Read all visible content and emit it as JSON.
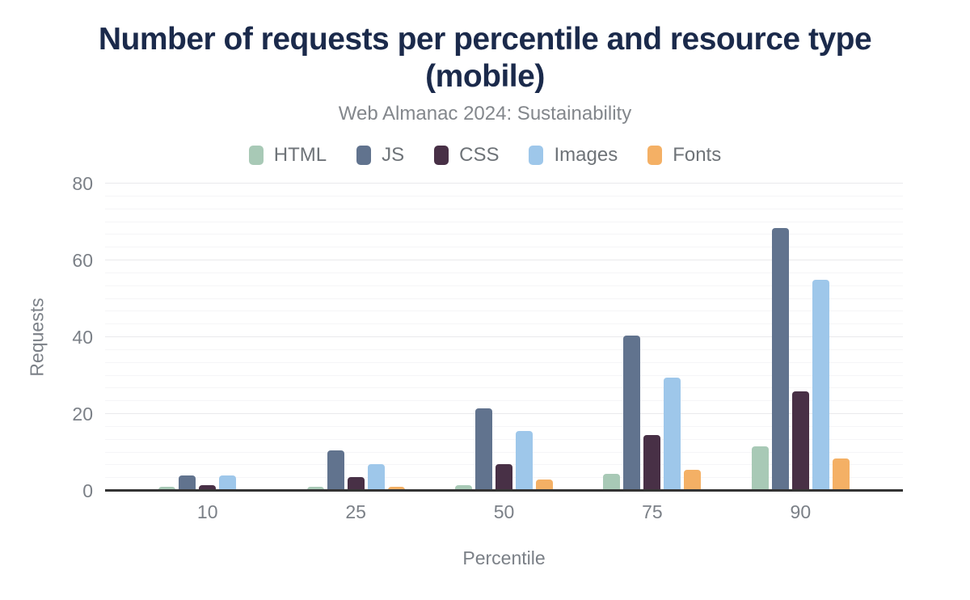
{
  "header": {
    "title": "Number of requests per percentile and resource type (mobile)",
    "subtitle": "Web Almanac 2024: Sustainability"
  },
  "chart_data": {
    "type": "bar",
    "title": "Number of requests per percentile and resource type (mobile)",
    "subtitle": "Web Almanac 2024: Sustainability",
    "xlabel": "Percentile",
    "ylabel": "Requests",
    "categories": [
      "10",
      "25",
      "50",
      "75",
      "90"
    ],
    "series": [
      {
        "name": "HTML",
        "color": "#a8c9b6",
        "values": [
          1,
          1,
          1.5,
          4.5,
          11.5
        ]
      },
      {
        "name": "JS",
        "color": "#61738e",
        "values": [
          4,
          10.5,
          21.5,
          40.5,
          68.5
        ]
      },
      {
        "name": "CSS",
        "color": "#483046",
        "values": [
          1.5,
          3.5,
          7,
          14.5,
          26
        ]
      },
      {
        "name": "Images",
        "color": "#9ec7ea",
        "values": [
          4,
          7,
          15.5,
          29.5,
          55
        ]
      },
      {
        "name": "Fonts",
        "color": "#f4b065",
        "values": [
          0,
          1,
          3,
          5.5,
          8.5
        ]
      }
    ],
    "ylim": [
      0,
      80
    ],
    "yticks": [
      0,
      20,
      40,
      60,
      80
    ],
    "minor_gridline_subdivisions": 6,
    "grid": true,
    "legend_position": "top"
  },
  "colors": {
    "bg": "#ffffff",
    "title": "#1b2a4b",
    "subtitle": "#83878c",
    "axis-text": "#7b8087",
    "legend-text": "#6e7378",
    "grid-major": "#e9e9ec",
    "grid-minor": "#f5f5f7",
    "axis-line": "#333333"
  }
}
